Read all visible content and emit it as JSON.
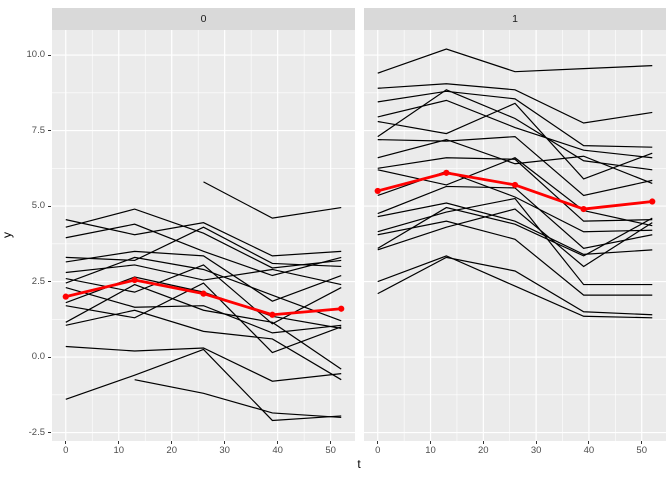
{
  "figure": {
    "background": "#ffffff"
  },
  "chart_data": {
    "type": "line",
    "title": "",
    "xlabel": "t",
    "ylabel": "y",
    "x": [
      0,
      13,
      26,
      39,
      52
    ],
    "x_ticks": [
      0,
      10,
      20,
      30,
      40,
      50
    ],
    "x_tick_labels": [
      "0",
      "10",
      "20",
      "30",
      "40",
      "50"
    ],
    "y_ticks": [
      -2.5,
      0.0,
      2.5,
      5.0,
      7.5,
      10.0
    ],
    "y_tick_labels": [
      "-2.5",
      "0.0",
      "2.5",
      "5.0",
      "7.5",
      "10.0"
    ],
    "x_minor_ticks": [
      5,
      15,
      25,
      35,
      45
    ],
    "y_minor_ticks": [
      -1.25,
      1.25,
      3.75,
      6.25,
      8.75
    ],
    "xlim": [
      -2.6,
      54.6
    ],
    "ylim": [
      -2.78,
      10.83
    ],
    "grid": "major-and-minor",
    "legend": "none",
    "facets": [
      {
        "label": "0",
        "lines": [
          [
            4.3,
            4.9,
            4.1,
            2.95,
            3.2
          ],
          [
            null,
            null,
            5.8,
            4.6,
            4.95
          ],
          [
            4.55,
            4.05,
            4.45,
            3.35,
            3.5
          ],
          [
            3.95,
            4.4,
            3.5,
            2.7,
            3.3
          ],
          [
            3.3,
            3.2,
            4.3,
            3.1,
            3.0
          ],
          [
            3.15,
            3.5,
            3.35,
            1.85,
            2.7
          ],
          [
            2.8,
            3.05,
            2.55,
            2.9,
            2.4
          ],
          [
            2.6,
            2.15,
            3.05,
            1.1,
            2.3
          ],
          [
            2.45,
            3.3,
            2.9,
            2.05,
            1.2
          ],
          [
            2.3,
            1.65,
            1.7,
            0.8,
            1.05
          ],
          [
            1.8,
            2.65,
            2.15,
            1.35,
            0.95
          ],
          [
            1.7,
            1.3,
            2.45,
            0.15,
            1.0
          ],
          [
            1.15,
            2.4,
            1.55,
            1.15,
            -0.4
          ],
          [
            1.05,
            1.55,
            0.85,
            0.6,
            -0.75
          ],
          [
            0.35,
            0.2,
            0.3,
            -0.8,
            -0.55
          ],
          [
            -1.4,
            -0.6,
            0.25,
            -2.1,
            -1.95
          ],
          [
            null,
            -0.75,
            -1.2,
            -1.85,
            -2.0
          ]
        ],
        "mean_series": [
          2.0,
          2.55,
          2.1,
          1.4,
          1.6
        ]
      },
      {
        "label": "1",
        "lines": [
          [
            9.4,
            10.2,
            9.45,
            9.55,
            9.65
          ],
          [
            8.9,
            9.05,
            8.85,
            7.75,
            8.1
          ],
          [
            8.45,
            8.8,
            8.55,
            7.0,
            6.95
          ],
          [
            7.95,
            8.5,
            7.6,
            6.85,
            6.6
          ],
          [
            7.8,
            7.4,
            8.4,
            5.9,
            6.75
          ],
          [
            7.3,
            8.85,
            7.9,
            6.5,
            6.2
          ],
          [
            7.2,
            7.15,
            7.3,
            5.35,
            5.85
          ],
          [
            6.6,
            7.2,
            6.4,
            6.65,
            5.75
          ],
          [
            6.25,
            6.6,
            6.55,
            4.5,
            4.55
          ],
          [
            6.2,
            5.7,
            6.6,
            4.85,
            4.35
          ],
          [
            5.35,
            6.15,
            5.3,
            4.15,
            4.2
          ],
          [
            4.75,
            5.65,
            5.6,
            3.6,
            4.05
          ],
          [
            4.65,
            5.1,
            4.5,
            3.4,
            3.55
          ],
          [
            4.15,
            4.8,
            5.25,
            2.4,
            2.4
          ],
          [
            4.05,
            4.5,
            3.9,
            2.05,
            2.05
          ],
          [
            3.6,
            4.95,
            4.4,
            3.35,
            4.6
          ],
          [
            3.55,
            4.3,
            4.9,
            3.0,
            4.45
          ],
          [
            2.5,
            3.35,
            2.35,
            1.35,
            1.3
          ],
          [
            2.1,
            3.3,
            2.85,
            1.5,
            1.4
          ]
        ],
        "mean_series": [
          5.5,
          6.1,
          5.7,
          4.9,
          5.15
        ]
      }
    ],
    "colors": {
      "line": "#000000",
      "mean_line": "#ff0000",
      "panel_background": "#ebebeb",
      "strip_background": "#d9d9d9",
      "grid": "#ffffff",
      "tick_text": "#4d4d4d",
      "tick_mark": "#333333"
    }
  }
}
